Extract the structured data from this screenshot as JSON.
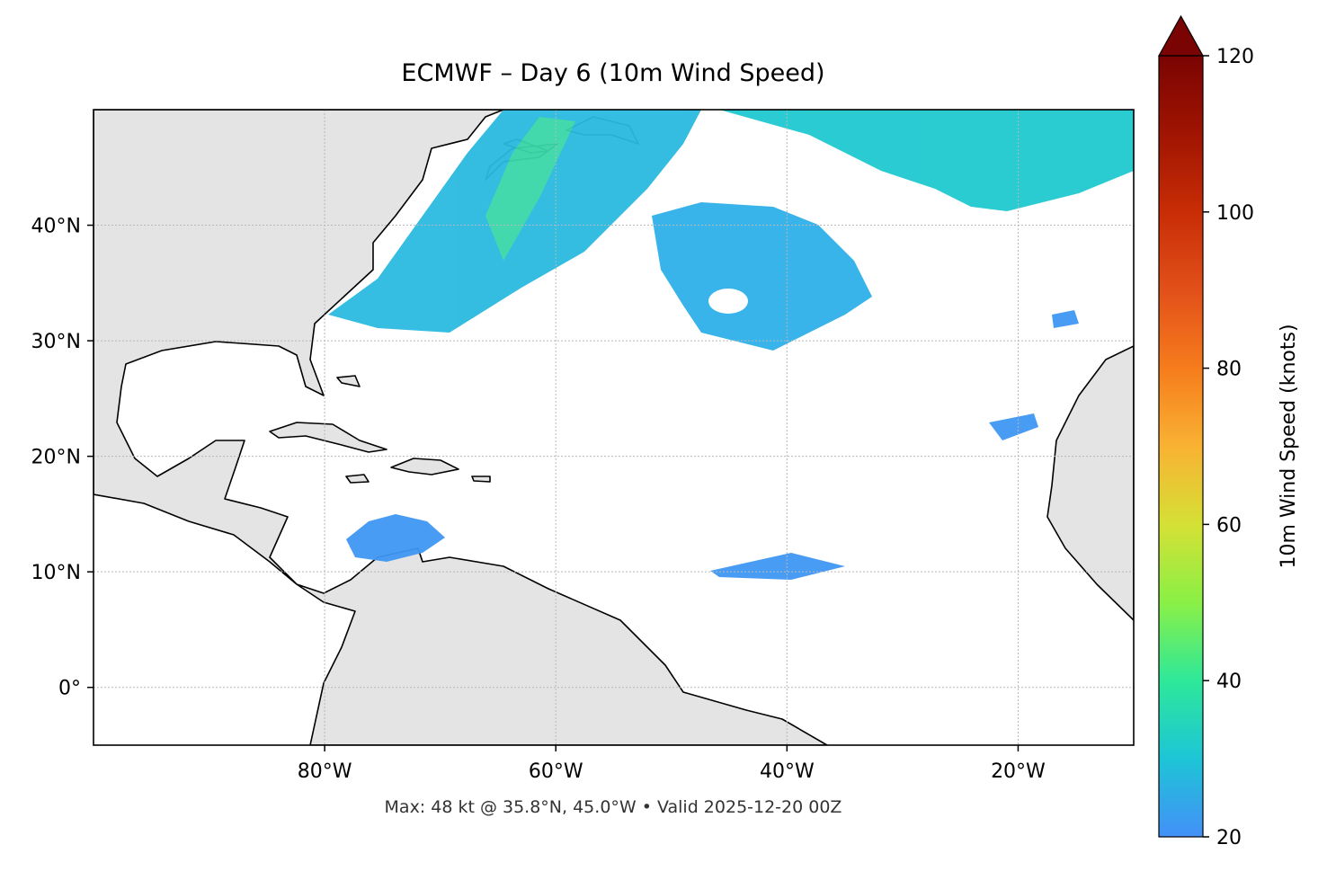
{
  "map": {
    "title": "ECMWF – Day 6 (10m Wind Speed)",
    "xlim": [
      -100,
      -10
    ],
    "ylim": [
      -5,
      50
    ],
    "xticks": [
      {
        "value": -80,
        "label": "80°W"
      },
      {
        "value": -60,
        "label": "60°W"
      },
      {
        "value": -40,
        "label": "40°W"
      },
      {
        "value": -20,
        "label": "20°W"
      }
    ],
    "yticks": [
      {
        "value": 0,
        "label": "0°"
      },
      {
        "value": 10,
        "label": "10°N"
      },
      {
        "value": 20,
        "label": "20°N"
      },
      {
        "value": 30,
        "label": "30°N"
      },
      {
        "value": 40,
        "label": "40°N"
      }
    ],
    "grid": true,
    "colorbar": {
      "label": "10m Wind Speed (knots)",
      "vlim": [
        20,
        120
      ],
      "ticks": [
        20,
        40,
        60,
        80,
        100,
        120
      ],
      "extend": "max"
    },
    "footnote": "Max: 48 kt @ 35.8°N, 45.0°W • Valid 2025-12-20 00Z"
  }
}
